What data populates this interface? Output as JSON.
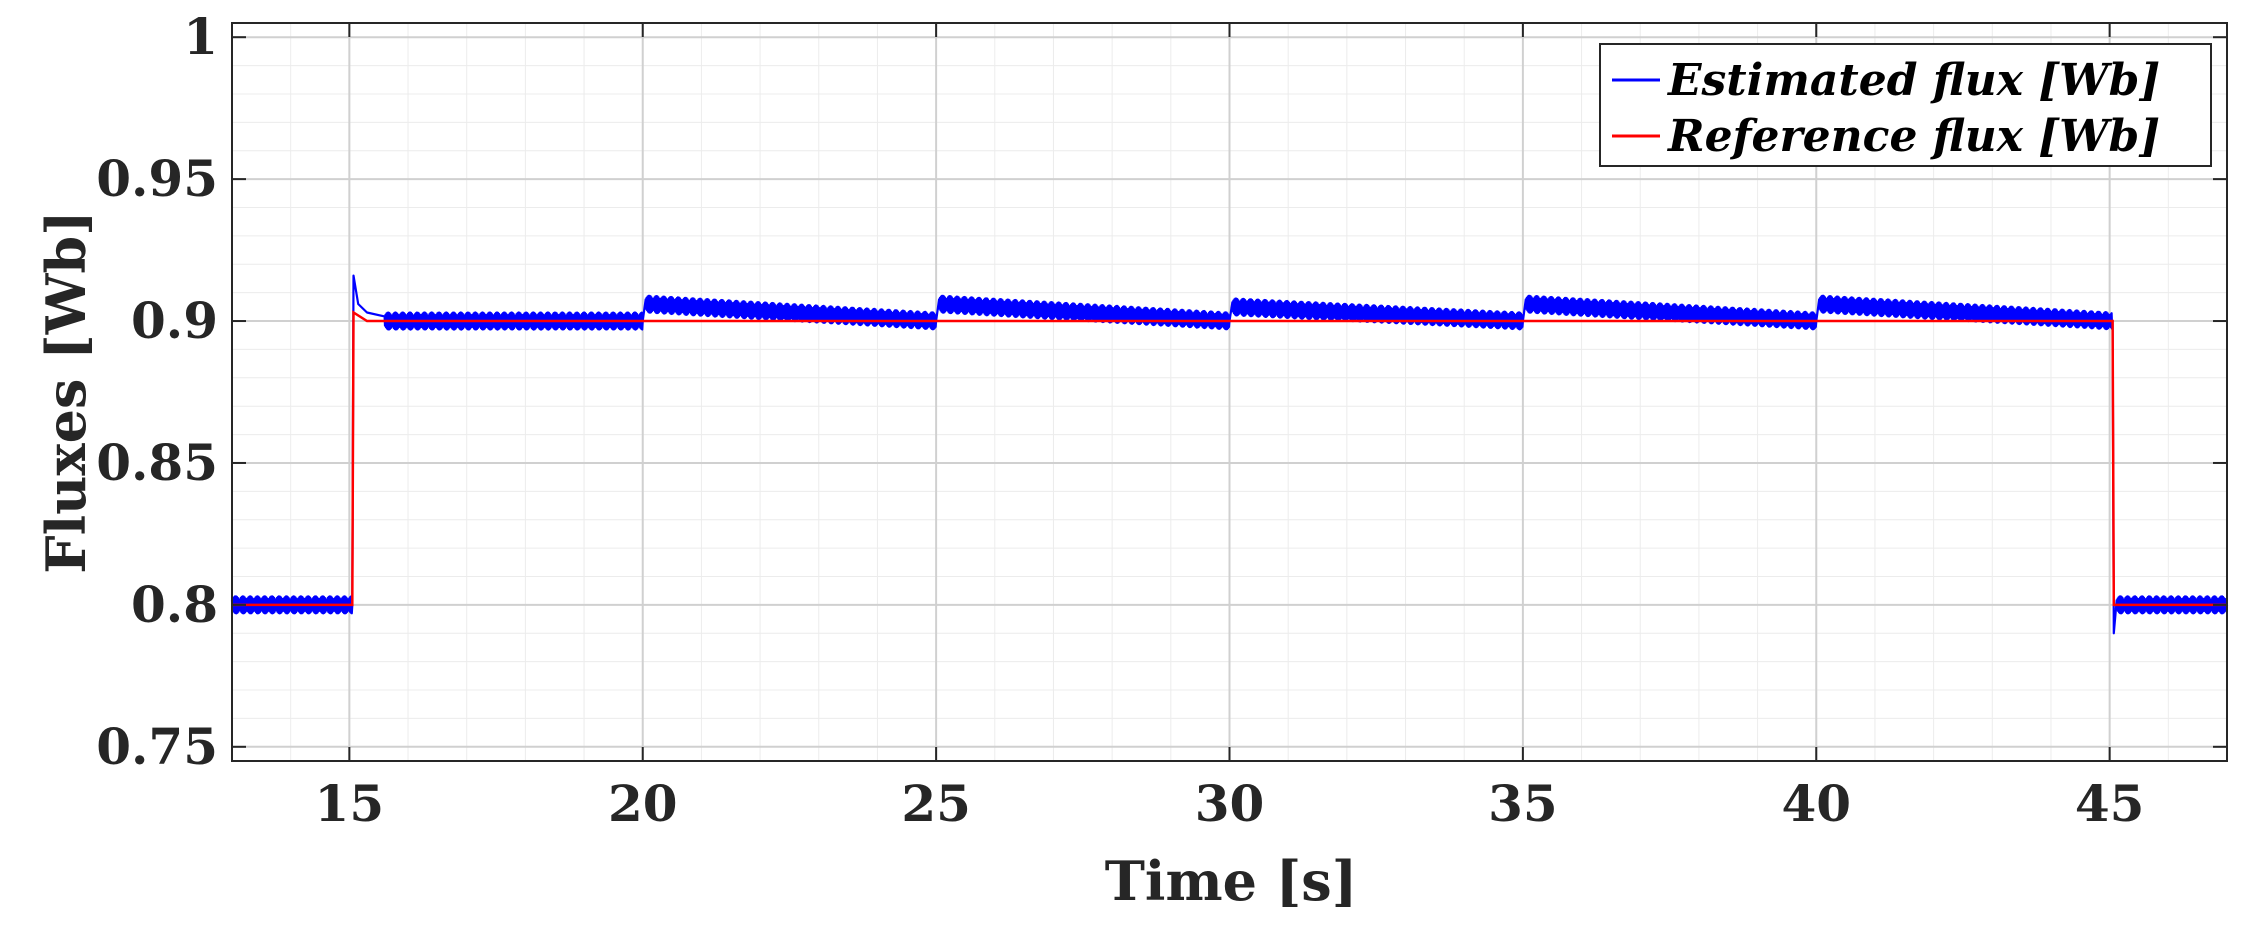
{
  "chart_data": {
    "type": "line",
    "xlabel": "Time [s]",
    "ylabel": "Fluxes [Wb]",
    "xlim": [
      13,
      47
    ],
    "ylim": [
      0.745,
      1.005
    ],
    "x_ticks": [
      15,
      20,
      25,
      30,
      35,
      40,
      45
    ],
    "x_tick_labels": [
      "15",
      "20",
      "25",
      "30",
      "35",
      "40",
      "45"
    ],
    "y_ticks": [
      0.75,
      0.8,
      0.85,
      0.9,
      0.95,
      1.0
    ],
    "y_tick_labels": [
      "0.75",
      "0.8",
      "0.85",
      "0.9",
      "0.95",
      "1"
    ],
    "grid": true,
    "minor_grid": true,
    "legend_position": "top-right",
    "series": [
      {
        "name": "Estimated flux [Wb]",
        "color": "#0000ff",
        "x": [
          13,
          15.05,
          15.07,
          15.15,
          15.3,
          15.6,
          20,
          20.05,
          25,
          25.05,
          30,
          30.05,
          35,
          35.05,
          40,
          40.05,
          45.05,
          45.07,
          45.12,
          47
        ],
        "values": [
          0.8,
          0.8,
          0.916,
          0.906,
          0.903,
          0.9,
          0.9,
          0.906,
          0.9,
          0.906,
          0.9,
          0.905,
          0.9,
          0.906,
          0.9,
          0.906,
          0.9,
          0.79,
          0.8,
          0.8
        ],
        "ripple": 0.003
      },
      {
        "name": "Reference flux [Wb]",
        "color": "#ff0000",
        "x": [
          13,
          15.05,
          15.07,
          15.3,
          45.05,
          45.07,
          47
        ],
        "values": [
          0.8,
          0.8,
          0.903,
          0.9,
          0.9,
          0.8,
          0.8
        ]
      }
    ]
  }
}
